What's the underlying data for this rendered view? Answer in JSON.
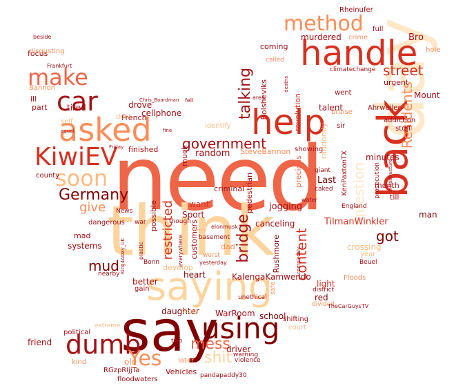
{
  "palette": {
    "darkest": "#7f0000",
    "dark": "#a50f15",
    "red": "#d7301f",
    "orange_red": "#ef6548",
    "orange": "#fc8d59",
    "light_orange": "#fdbb84",
    "peach": "#fdd49e",
    "pale": "#fee8c8"
  },
  "words": [
    {
      "text": "need"
    },
    {
      "text": "think"
    },
    {
      "text": "say"
    },
    {
      "text": "day"
    },
    {
      "text": "saying"
    },
    {
      "text": "back"
    },
    {
      "text": "handle"
    },
    {
      "text": "help"
    },
    {
      "text": "asked"
    },
    {
      "text": "using"
    },
    {
      "text": "KiwiEV"
    },
    {
      "text": "dumb"
    },
    {
      "text": "car"
    },
    {
      "text": "make"
    },
    {
      "text": "method"
    },
    {
      "text": "soon"
    },
    {
      "text": "Germany"
    },
    {
      "text": "Yes"
    },
    {
      "text": "street"
    },
    {
      "text": "government"
    },
    {
      "text": "talking"
    },
    {
      "text": "Residents"
    },
    {
      "text": "bridge"
    },
    {
      "text": "content"
    },
    {
      "text": "restricted"
    },
    {
      "text": "give"
    },
    {
      "text": "mud"
    },
    {
      "text": "got"
    },
    {
      "text": "question"
    },
    {
      "text": "mess"
    },
    {
      "text": "shit"
    },
    {
      "text": "TilmanWinkler"
    },
    {
      "text": "KalengaKamwendo"
    },
    {
      "text": "murdered"
    },
    {
      "text": "Bro"
    },
    {
      "text": "Mount"
    },
    {
      "text": "urgent"
    },
    {
      "text": "revolution"
    },
    {
      "text": "Bolsheviks"
    },
    {
      "text": "minutes"
    },
    {
      "text": "Last"
    },
    {
      "text": "jogging"
    },
    {
      "text": "pedestrian"
    },
    {
      "text": "precious"
    },
    {
      "text": "random"
    },
    {
      "text": "much"
    },
    {
      "text": "want"
    },
    {
      "text": "Sport"
    },
    {
      "text": "possible"
    },
    {
      "text": "systems"
    },
    {
      "text": "better"
    },
    {
      "text": "daughter"
    },
    {
      "text": "WarRoom"
    },
    {
      "text": "school"
    },
    {
      "text": "driver"
    },
    {
      "text": "Vehicles"
    },
    {
      "text": "old"
    },
    {
      "text": "friend"
    },
    {
      "text": "heart"
    },
    {
      "text": "crossing"
    },
    {
      "text": "man"
    },
    {
      "text": "month"
    },
    {
      "text": "till"
    },
    {
      "text": "canceling"
    },
    {
      "text": "light"
    },
    {
      "text": "red"
    },
    {
      "text": "Rushmore"
    },
    {
      "text": "talent"
    },
    {
      "text": "tired"
    },
    {
      "text": "drove"
    },
    {
      "text": "cellphone"
    },
    {
      "text": "French"
    },
    {
      "text": "finished"
    },
    {
      "text": "focus"
    },
    {
      "text": "ill"
    },
    {
      "text": "part"
    },
    {
      "text": "Bannon"
    },
    {
      "text": "disgusting"
    },
    {
      "text": "coming"
    },
    {
      "text": "crime"
    },
    {
      "text": "full"
    },
    {
      "text": "Rheinufer"
    },
    {
      "text": "hole"
    },
    {
      "text": "county"
    },
    {
      "text": "customers"
    },
    {
      "text": "criminal"
    },
    {
      "text": "dad"
    },
    {
      "text": "mad"
    },
    {
      "text": "SteveBannon"
    },
    {
      "text": "showing"
    },
    {
      "text": "KenPaxtonTX"
    },
    {
      "text": "sir"
    },
    {
      "text": "went"
    },
    {
      "text": "bruise"
    },
    {
      "text": "Ahrweiler"
    },
    {
      "text": "addiction"
    },
    {
      "text": "stuff"
    },
    {
      "text": "giant"
    },
    {
      "text": "caked"
    },
    {
      "text": "England"
    },
    {
      "text": "RGzpRIjjTa"
    },
    {
      "text": "floodwaters"
    },
    {
      "text": "pandapaddy30"
    },
    {
      "text": "violence"
    },
    {
      "text": "warning"
    },
    {
      "text": "later"
    },
    {
      "text": "kind"
    },
    {
      "text": "two"
    },
    {
      "text": "political"
    },
    {
      "text": "gain"
    },
    {
      "text": "nearby"
    },
    {
      "text": "Bonn"
    },
    {
      "text": "dangerous"
    },
    {
      "text": "News"
    },
    {
      "text": "war"
    },
    {
      "text": "though"
    },
    {
      "text": "basement"
    },
    {
      "text": "worst"
    },
    {
      "text": "yesterday"
    },
    {
      "text": "everywhere"
    },
    {
      "text": "unethical"
    },
    {
      "text": "safe"
    },
    {
      "text": "Floods"
    },
    {
      "text": "district"
    },
    {
      "text": "divided"
    },
    {
      "text": "Beuel"
    },
    {
      "text": "court"
    },
    {
      "text": "shifting"
    },
    {
      "text": "TheCarGuysTV"
    },
    {
      "text": "today"
    },
    {
      "text": "extreme"
    },
    {
      "text": "develop"
    },
    {
      "text": "climatechange"
    },
    {
      "text": "called"
    },
    {
      "text": "deaths"
    },
    {
      "text": "Frankfurt"
    },
    {
      "text": "beside"
    },
    {
      "text": "Friday"
    },
    {
      "text": "fine"
    },
    {
      "text": "fell"
    },
    {
      "text": "equal"
    },
    {
      "text": "self"
    },
    {
      "text": "area"
    },
    {
      "text": "plastic"
    },
    {
      "text": "bikes"
    },
    {
      "text": "elonmusk"
    },
    {
      "text": "water"
    },
    {
      "text": "completely"
    },
    {
      "text": "Chris_Boardman"
    },
    {
      "text": "King4ADay_UK"
    },
    {
      "text": "year"
    },
    {
      "text": "identify"
    },
    {
      "text": "randomly"
    },
    {
      "text": "dont"
    },
    {
      "text": "prosecution"
    },
    {
      "text": "infrastructure"
    }
  ]
}
